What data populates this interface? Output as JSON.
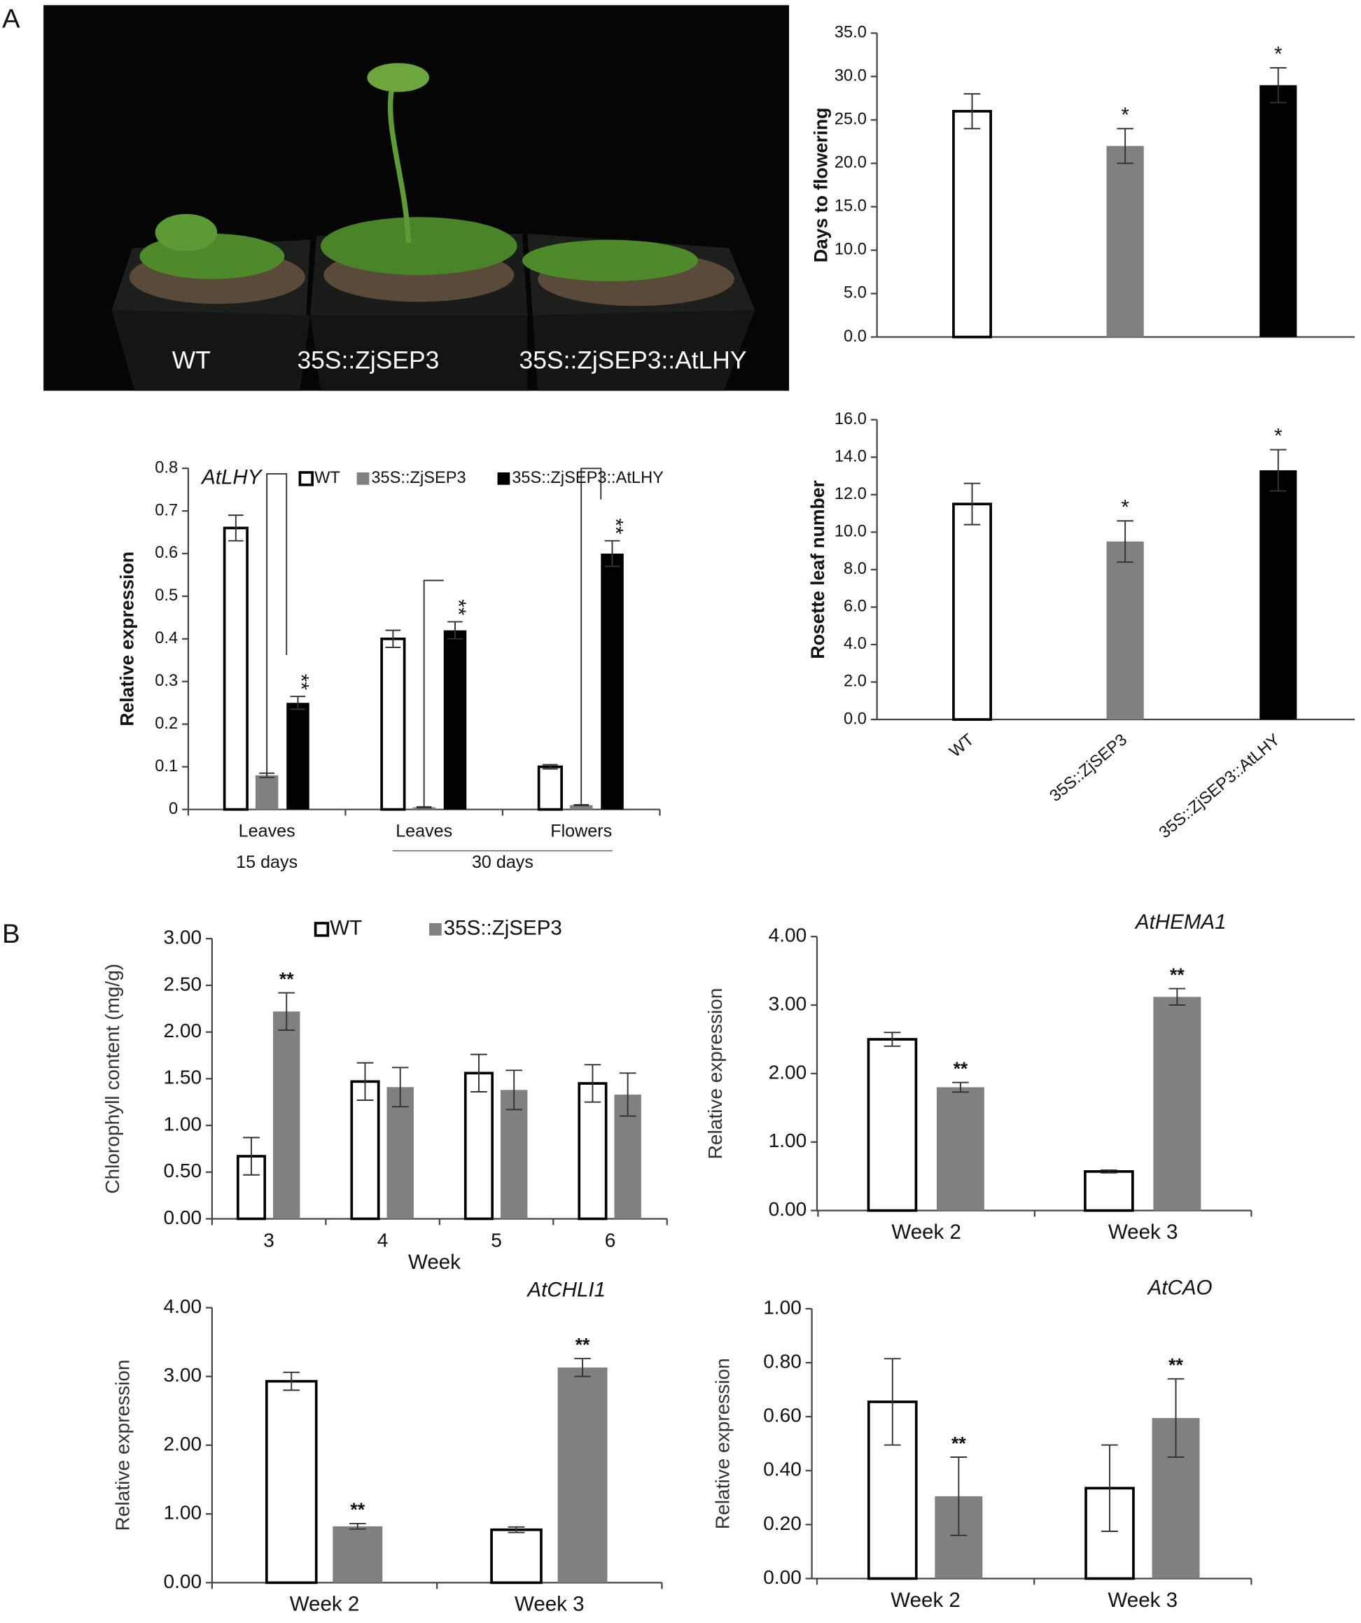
{
  "panel_labels": [
    "A",
    "B"
  ],
  "photo": {
    "labels": [
      "WT",
      "35S::ZjSEP3",
      "35S::ZjSEP3::AtLHY"
    ]
  },
  "chart_data": [
    {
      "type": "bar",
      "ylabel": "Days to flowering",
      "categories": [
        null,
        null,
        null
      ],
      "series": [
        {
          "colors": [
            "#ffffff",
            "#808080",
            "#000000"
          ],
          "values": [
            26,
            22,
            29
          ],
          "errors": [
            2,
            2,
            2
          ],
          "annotations": [
            null,
            "*",
            "*"
          ]
        }
      ],
      "ylim": [
        0,
        35
      ],
      "yticks": [
        {
          "value": 0,
          "label": "0.0"
        },
        {
          "value": 5,
          "label": "5.0"
        },
        {
          "value": 10,
          "label": "10.0"
        },
        {
          "value": 15,
          "label": "15.0"
        },
        {
          "value": 20,
          "label": "20.0"
        },
        {
          "value": 25,
          "label": "25.0"
        },
        {
          "value": 30,
          "label": "30.0"
        },
        {
          "value": 35,
          "label": "35.0"
        }
      ]
    },
    {
      "type": "bar",
      "ylabel": "Rosette leaf number",
      "categories": [
        "WT",
        "35S::ZjSEP3",
        "35S::ZjSEP3::AtLHY"
      ],
      "series": [
        {
          "colors": [
            "#ffffff",
            "#808080",
            "#000000"
          ],
          "values": [
            11.5,
            9.5,
            13.3
          ],
          "errors": [
            1.1,
            1.1,
            1.1
          ],
          "annotations": [
            null,
            "*",
            "*"
          ]
        }
      ],
      "ylim": [
        0,
        16
      ],
      "yticks": [
        {
          "value": 0,
          "label": "0.0"
        },
        {
          "value": 2,
          "label": "2.0"
        },
        {
          "value": 4,
          "label": "4.0"
        },
        {
          "value": 6,
          "label": "6.0"
        },
        {
          "value": 8,
          "label": "8.0"
        },
        {
          "value": 10,
          "label": "10.0"
        },
        {
          "value": 12,
          "label": "12.0"
        },
        {
          "value": 14,
          "label": "14.0"
        },
        {
          "value": 16,
          "label": "16.0"
        }
      ]
    },
    {
      "type": "bar",
      "title": "AtLHY",
      "ylabel": "Relative expression",
      "categories": [
        "Leaves",
        "Leaves",
        "Flowers"
      ],
      "groups": [
        "15 days",
        "30 days"
      ],
      "series": [
        {
          "name": "WT",
          "color": "#ffffff",
          "values": [
            0.66,
            0.4,
            0.1
          ],
          "errors": [
            0.03,
            0.02,
            0.005
          ],
          "annotations": [
            null,
            null,
            null
          ]
        },
        {
          "name": "35S::ZjSEP3",
          "color": "#808080",
          "values": [
            0.08,
            0.005,
            0.01
          ],
          "errors": [
            0.005,
            0.001,
            0.001
          ],
          "annotations": [
            null,
            null,
            null
          ]
        },
        {
          "name": "35S::ZjSEP3::AtLHY",
          "color": "#000000",
          "values": [
            0.25,
            0.42,
            0.6
          ],
          "errors": [
            0.015,
            0.02,
            0.03
          ],
          "annotations": [
            "**",
            "**",
            "**"
          ]
        }
      ],
      "legend": true,
      "ylim": [
        0,
        0.8
      ],
      "yticks": [
        0,
        0.1,
        0.2,
        0.3,
        0.4,
        0.5,
        0.6,
        0.7,
        0.8
      ]
    },
    {
      "type": "bar",
      "ylabel": "Chlorophyll content (mg/g)",
      "xlabel": "Week",
      "categories": [
        "3",
        "4",
        "5",
        "6"
      ],
      "series": [
        {
          "name": "WT",
          "color": "#ffffff",
          "values": [
            0.67,
            1.47,
            1.56,
            1.45
          ],
          "errors": [
            0.2,
            0.2,
            0.2,
            0.2
          ],
          "annotations": [
            null,
            null,
            null,
            null
          ]
        },
        {
          "name": "35S::ZjSEP3",
          "color": "#808080",
          "values": [
            2.22,
            1.41,
            1.38,
            1.33
          ],
          "errors": [
            0.2,
            0.21,
            0.21,
            0.23
          ],
          "annotations": [
            "**",
            null,
            null,
            null
          ]
        }
      ],
      "legend": true,
      "ylim": [
        0,
        3
      ],
      "yticks": [
        {
          "value": 0,
          "label": "0.00"
        },
        {
          "value": 0.5,
          "label": "0.50"
        },
        {
          "value": 1,
          "label": "1.00"
        },
        {
          "value": 1.5,
          "label": "1.50"
        },
        {
          "value": 2,
          "label": "2.00"
        },
        {
          "value": 2.5,
          "label": "2.50"
        },
        {
          "value": 3,
          "label": "3.00"
        }
      ]
    },
    {
      "type": "bar",
      "title": "AtHEMA1",
      "ylabel": "Relative expression",
      "categories": [
        "Week 2",
        "Week 3"
      ],
      "series": [
        {
          "color": "#ffffff",
          "values": [
            2.5,
            0.57
          ],
          "errors": [
            0.1,
            0.02
          ],
          "annotations": [
            null,
            null
          ]
        },
        {
          "color": "#808080",
          "values": [
            1.8,
            3.12
          ],
          "errors": [
            0.07,
            0.12
          ],
          "annotations": [
            "**",
            "**"
          ]
        }
      ],
      "ylim": [
        0,
        4
      ],
      "yticks": [
        {
          "value": 0,
          "label": "0.00"
        },
        {
          "value": 1,
          "label": "1.00"
        },
        {
          "value": 2,
          "label": "2.00"
        },
        {
          "value": 3,
          "label": "3.00"
        },
        {
          "value": 4,
          "label": "4.00"
        }
      ]
    },
    {
      "type": "bar",
      "title": "AtCHLI1",
      "ylabel": "Relative expression",
      "categories": [
        "Week 2",
        "Week 3"
      ],
      "series": [
        {
          "color": "#ffffff",
          "values": [
            2.93,
            0.77
          ],
          "errors": [
            0.13,
            0.04
          ],
          "annotations": [
            null,
            null
          ]
        },
        {
          "color": "#808080",
          "values": [
            0.82,
            3.13
          ],
          "errors": [
            0.04,
            0.13
          ],
          "annotations": [
            "**",
            "**"
          ]
        }
      ],
      "ylim": [
        0,
        4
      ],
      "yticks": [
        {
          "value": 0,
          "label": "0.00"
        },
        {
          "value": 1,
          "label": "1.00"
        },
        {
          "value": 2,
          "label": "2.00"
        },
        {
          "value": 3,
          "label": "3.00"
        },
        {
          "value": 4,
          "label": "4.00"
        }
      ]
    },
    {
      "type": "bar",
      "title": "AtCAO",
      "ylabel": "Relative expression",
      "categories": [
        "Week 2",
        "Week 3"
      ],
      "series": [
        {
          "color": "#ffffff",
          "values": [
            0.655,
            0.335
          ],
          "errors": [
            0.16,
            0.16
          ],
          "annotations": [
            null,
            null
          ]
        },
        {
          "color": "#808080",
          "values": [
            0.305,
            0.595
          ],
          "errors": [
            0.145,
            0.145
          ],
          "annotations": [
            "**",
            "**"
          ]
        }
      ],
      "ylim": [
        0,
        1
      ],
      "yticks": [
        {
          "value": 0,
          "label": "0.00"
        },
        {
          "value": 0.2,
          "label": "0.20"
        },
        {
          "value": 0.4,
          "label": "0.40"
        },
        {
          "value": 0.6,
          "label": "0.60"
        },
        {
          "value": 0.8,
          "label": "0.80"
        },
        {
          "value": 1,
          "label": "1.00"
        }
      ]
    }
  ]
}
